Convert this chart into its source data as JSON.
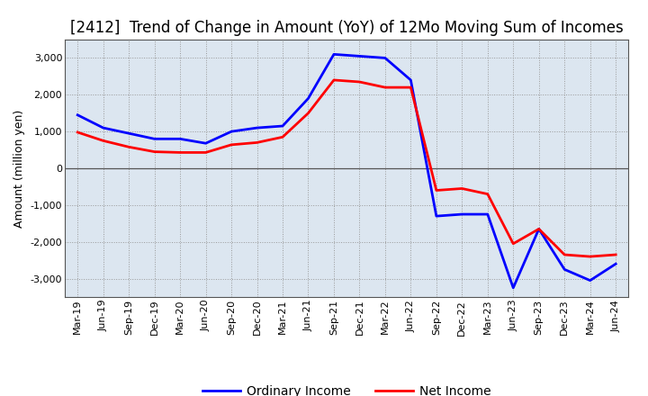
{
  "title": "[2412]  Trend of Change in Amount (YoY) of 12Mo Moving Sum of Incomes",
  "ylabel": "Amount (million yen)",
  "xlabels": [
    "Mar-19",
    "Jun-19",
    "Sep-19",
    "Dec-19",
    "Mar-20",
    "Jun-20",
    "Sep-20",
    "Dec-20",
    "Mar-21",
    "Jun-21",
    "Sep-21",
    "Dec-21",
    "Mar-22",
    "Jun-22",
    "Sep-22",
    "Dec-22",
    "Mar-23",
    "Jun-23",
    "Sep-23",
    "Dec-23",
    "Mar-24",
    "Jun-24"
  ],
  "ordinary_income": [
    1450,
    1100,
    950,
    800,
    800,
    680,
    1000,
    1100,
    1150,
    1900,
    3100,
    3050,
    3000,
    2400,
    -1300,
    -1250,
    -1250,
    -3250,
    -1650,
    -2750,
    -3050,
    -2600
  ],
  "net_income": [
    980,
    750,
    580,
    450,
    430,
    430,
    640,
    700,
    850,
    1500,
    2400,
    2350,
    2200,
    2200,
    -600,
    -550,
    -700,
    -2050,
    -1650,
    -2350,
    -2400,
    -2350
  ],
  "ordinary_color": "#0000ff",
  "net_color": "#ff0000",
  "ylim": [
    -3500,
    3500
  ],
  "yticks": [
    -3000,
    -2000,
    -1000,
    0,
    1000,
    2000,
    3000
  ],
  "bg_color": "#ffffff",
  "plot_bg_color": "#dce6f0",
  "grid_color": "#999999",
  "title_fontsize": 12,
  "axis_fontsize": 9,
  "tick_fontsize": 8
}
